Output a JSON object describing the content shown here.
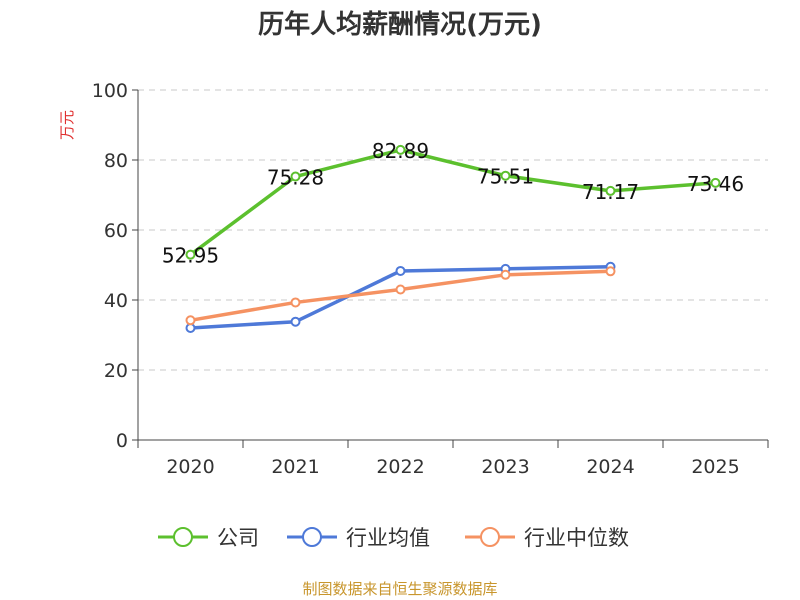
{
  "chart_data": {
    "type": "line",
    "title": "历年人均薪酬情况(万元)",
    "ylabel": "万元",
    "xlabel": "",
    "categories": [
      "2020",
      "2021",
      "2022",
      "2023",
      "2024",
      "2025"
    ],
    "ylim": [
      0,
      100
    ],
    "yticks": [
      0,
      20,
      40,
      60,
      80,
      100
    ],
    "grid": true,
    "legend_position": "bottom",
    "series": [
      {
        "name": "公司",
        "color": "#5cc02e",
        "values": [
          52.95,
          75.28,
          82.89,
          75.51,
          71.17,
          73.46
        ],
        "labels": [
          "52.95",
          "75.28",
          "82.89",
          "75.51",
          "71.17",
          "73.46"
        ]
      },
      {
        "name": "行业均值",
        "color": "#4e79d8",
        "values": [
          32.0,
          33.8,
          48.3,
          48.9,
          49.5,
          null
        ]
      },
      {
        "name": "行业中位数",
        "color": "#f59262",
        "values": [
          34.2,
          39.3,
          43.0,
          47.2,
          48.2,
          null
        ]
      }
    ]
  },
  "source_note": "制图数据来自恒生聚源数据库"
}
